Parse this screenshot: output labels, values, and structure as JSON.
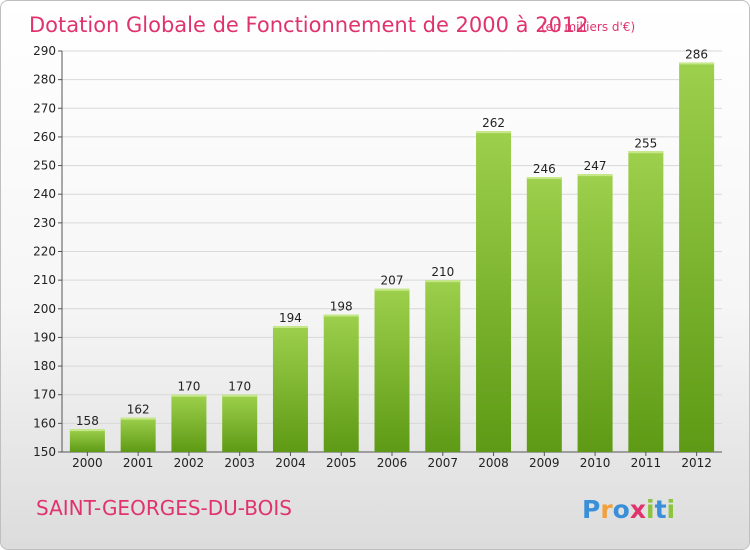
{
  "title": "Dotation Globale de Fonctionnement de 2000 à 2012",
  "subtitle": "(en milliers d'€)",
  "commune": "SAINT-GEORGES-DU-BOIS",
  "logo": {
    "text": "Proxiti",
    "letters": [
      {
        "ch": "P",
        "color": "#3a8fd9"
      },
      {
        "ch": "r",
        "color": "#f2a03d"
      },
      {
        "ch": "o",
        "color": "#3a8fd9"
      },
      {
        "ch": "x",
        "color": "#e0336e"
      },
      {
        "ch": "i",
        "color": "#8cc43f"
      },
      {
        "ch": "t",
        "color": "#3a8fd9"
      },
      {
        "ch": "i",
        "color": "#8cc43f"
      }
    ]
  },
  "colors": {
    "bar_top": "#9dd04c",
    "bar_bottom": "#5e9a15",
    "title": "#e0336e",
    "grid": "#d8d8d8"
  },
  "chart_data": {
    "type": "bar",
    "title": "Dotation Globale de Fonctionnement de 2000 à 2012",
    "subtitle": "(en milliers d'€)",
    "categories": [
      "2000",
      "2001",
      "2002",
      "2003",
      "2004",
      "2005",
      "2006",
      "2007",
      "2008",
      "2009",
      "2010",
      "2011",
      "2012"
    ],
    "values": [
      158,
      162,
      170,
      170,
      194,
      198,
      207,
      210,
      262,
      246,
      247,
      255,
      286
    ],
    "ylim": [
      150,
      290
    ],
    "yticks": [
      150,
      160,
      170,
      180,
      190,
      200,
      210,
      220,
      230,
      240,
      250,
      260,
      270,
      280,
      290
    ],
    "grid": true,
    "legend": "none"
  }
}
